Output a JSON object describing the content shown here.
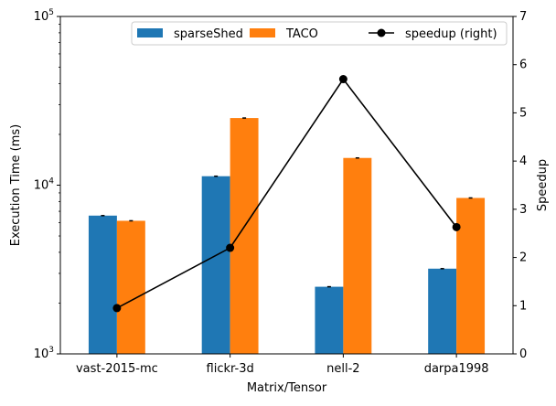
{
  "chart_data": {
    "type": "bar",
    "xlabel": "Matrix/Tensor",
    "ylabel": "Execution Time (ms)",
    "y2label": "Speedup",
    "yscale": "log",
    "ylim": [
      1000,
      100000
    ],
    "y2lim": [
      0,
      7
    ],
    "yticks": [
      {
        "value": 1000,
        "base": "10",
        "exp": "3"
      },
      {
        "value": 10000,
        "base": "10",
        "exp": "4"
      },
      {
        "value": 100000,
        "base": "10",
        "exp": "5"
      }
    ],
    "y2ticks": [
      "0",
      "1",
      "2",
      "3",
      "4",
      "5",
      "6",
      "7"
    ],
    "categories": [
      "vast-2015-mc",
      "flickr-3d",
      "nell-2",
      "darpa1998"
    ],
    "series": [
      {
        "name": "sparseShed",
        "kind": "bar",
        "axis": "left",
        "color": "#1f77b4",
        "values": [
          6600,
          11300,
          2500,
          3200
        ]
      },
      {
        "name": "TACO",
        "kind": "bar",
        "axis": "left",
        "color": "#ff7f0e",
        "values": [
          6150,
          25000,
          14500,
          8400
        ]
      },
      {
        "name": "speedup (right)",
        "kind": "line",
        "axis": "right",
        "color": "#000000",
        "values": [
          0.95,
          2.2,
          5.7,
          2.63
        ]
      }
    ],
    "grid": false,
    "legend_position": "top-right"
  }
}
